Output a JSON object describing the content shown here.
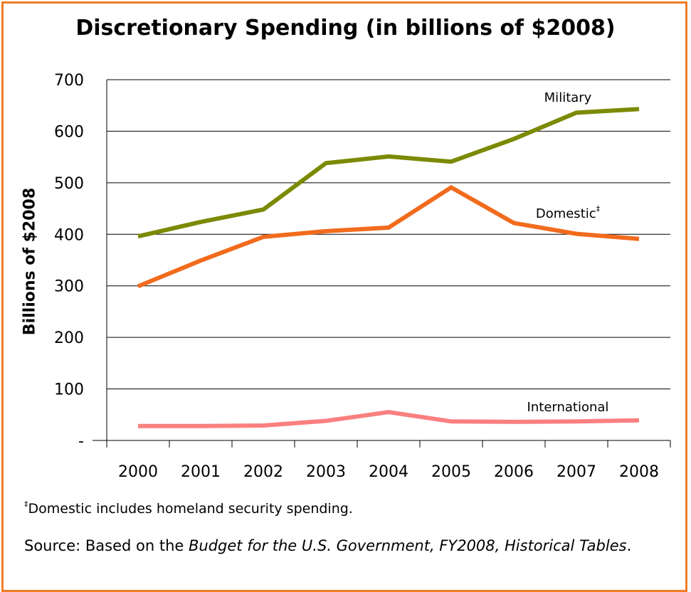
{
  "chart_data": {
    "type": "line",
    "title": "Discretionary Spending (in billions of $2008)",
    "xlabel": "",
    "ylabel": "Billions of $2008",
    "categories": [
      "2000",
      "2001",
      "2002",
      "2003",
      "2004",
      "2005",
      "2006",
      "2007",
      "2008"
    ],
    "y_ticks": [
      "-",
      "100",
      "200",
      "300",
      "400",
      "500",
      "600",
      "700"
    ],
    "ylim": [
      0,
      700
    ],
    "grid": true,
    "series": [
      {
        "name": "Military",
        "color": "#7B8A00",
        "values": [
          396,
          424,
          448,
          538,
          551,
          541,
          585,
          636,
          643
        ]
      },
      {
        "name": "Domestic",
        "name_mark": "‡",
        "color": "#F26B1D",
        "values": [
          299,
          349,
          395,
          406,
          413,
          491,
          422,
          401,
          391
        ]
      },
      {
        "name": "International",
        "color": "#FA8080",
        "values": [
          28,
          28,
          29,
          38,
          55,
          37,
          36,
          37,
          39
        ]
      }
    ]
  },
  "footnote": {
    "mark": "‡",
    "text": "Domestic includes homeland security spending."
  },
  "source": {
    "prefix": "Source:  Based on the ",
    "title": "Budget for the U.S. Government, FY2008, Historical Tables",
    "suffix": "."
  },
  "colors": {
    "frame": "#F07E26"
  }
}
